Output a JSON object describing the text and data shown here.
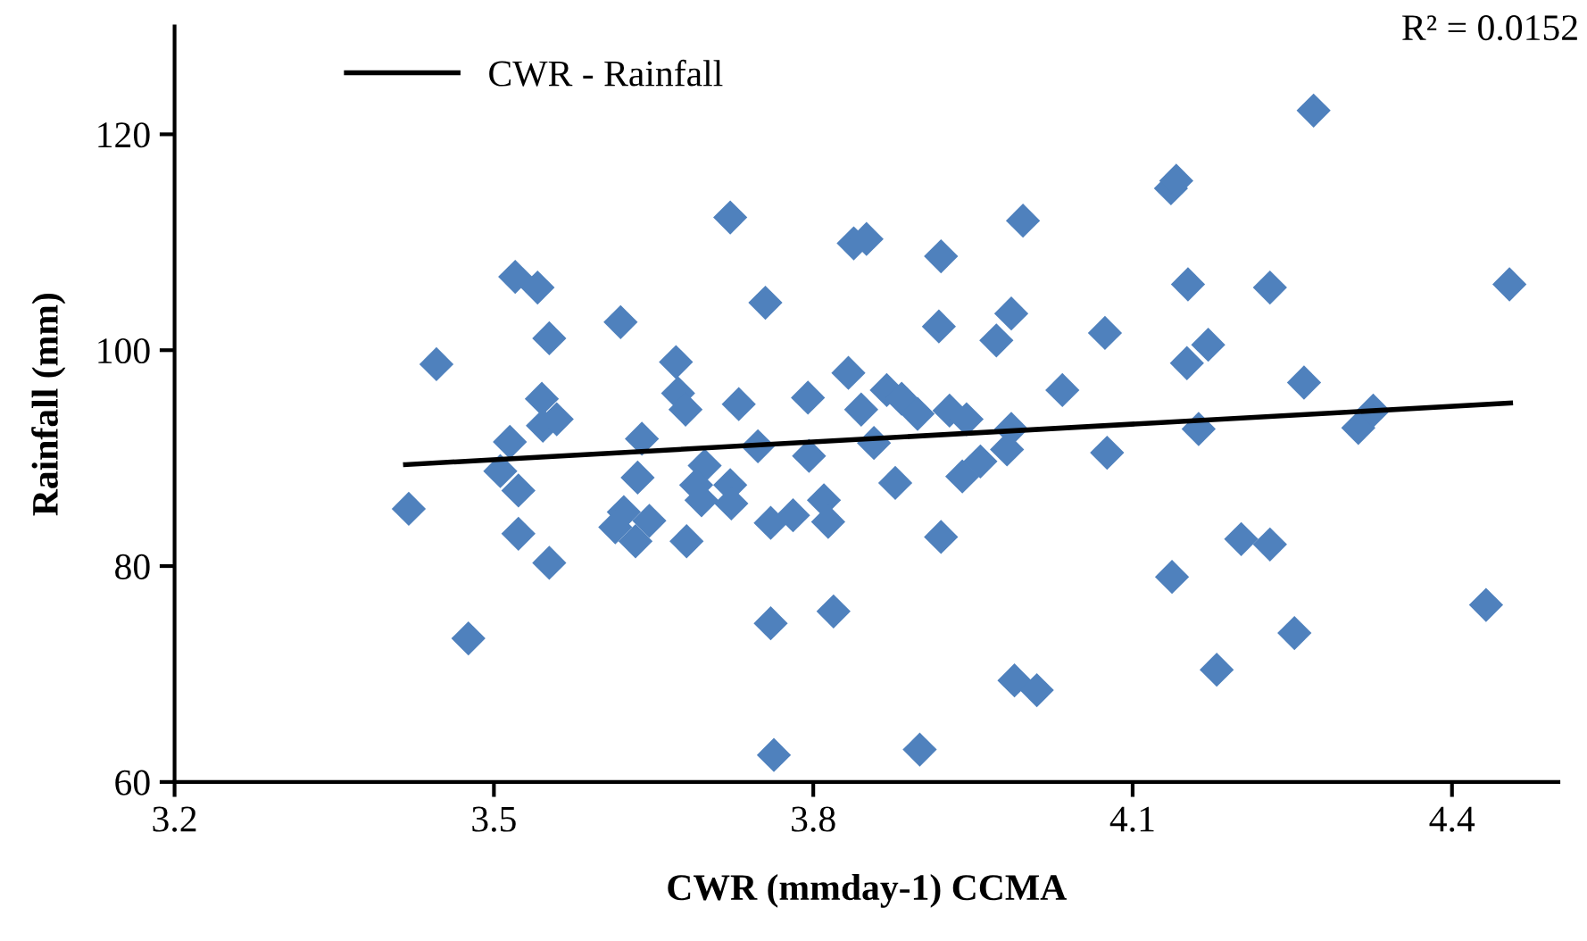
{
  "chart_data": {
    "type": "scatter",
    "xlabel": "CWR (mmday-1) CCMA",
    "ylabel": "Rainfall (mm)",
    "annotations": [
      "R² = 0.0152"
    ],
    "xlim": [
      3.2,
      4.5
    ],
    "xticks": [
      3.2,
      3.5,
      3.8,
      4.1,
      4.4
    ],
    "ylim": [
      60,
      130
    ],
    "yticks": [
      60,
      80,
      100,
      120
    ],
    "grid": false,
    "legend": "top left",
    "marker": "diamond",
    "series": [
      {
        "color": "#4f81bd",
        "x": [
          3.42,
          3.446,
          3.476,
          3.52,
          3.541,
          3.552,
          3.545,
          3.546,
          3.559,
          3.515,
          3.506,
          3.523,
          3.523,
          3.552,
          3.619,
          3.639,
          3.635,
          3.622,
          3.614,
          3.646,
          3.633,
          3.671,
          3.673,
          3.68,
          3.681,
          3.698,
          3.69,
          3.695,
          3.722,
          3.723,
          3.722,
          3.73,
          3.748,
          3.755,
          3.76,
          3.781,
          3.76,
          3.763,
          3.795,
          3.796,
          3.81,
          3.814,
          3.819,
          3.833,
          3.838,
          3.85,
          3.845,
          3.857,
          3.877,
          3.869,
          3.883,
          3.898,
          3.9,
          3.92,
          3.918,
          3.92,
          3.928,
          3.944,
          3.986,
          3.982,
          3.94,
          3.957,
          3.972,
          3.986,
          3.997,
          3.989,
          4.01,
          4.034,
          4.074,
          4.076,
          4.136,
          4.141,
          4.152,
          4.151,
          4.171,
          4.162,
          4.137,
          4.179,
          4.202,
          4.229,
          4.229,
          4.252,
          4.261,
          4.27,
          4.312,
          4.326,
          4.432,
          4.454
        ],
        "values": [
          85.3,
          98.7,
          73.3,
          106.8,
          105.8,
          101.1,
          95.5,
          93.0,
          93.6,
          91.5,
          88.8,
          87.0,
          83.0,
          80.3,
          102.6,
          91.8,
          88.2,
          85.0,
          83.6,
          84.2,
          82.3,
          98.9,
          96.0,
          94.5,
          82.3,
          89.3,
          87.5,
          86.1,
          87.5,
          85.8,
          112.3,
          95.0,
          91.1,
          104.4,
          84.0,
          84.7,
          74.7,
          62.5,
          95.6,
          90.2,
          86.1,
          84.1,
          75.8,
          97.9,
          109.9,
          110.3,
          94.5,
          91.4,
          87.7,
          96.3,
          95.5,
          94.1,
          63.0,
          108.7,
          102.2,
          82.7,
          94.4,
          93.6,
          92.7,
          90.8,
          88.3,
          89.7,
          100.9,
          103.4,
          112.0,
          69.4,
          68.5,
          96.3,
          101.6,
          90.5,
          115.0,
          115.7,
          106.1,
          98.8,
          100.5,
          92.7,
          79.0,
          70.4,
          82.5,
          82.0,
          105.8,
          73.8,
          97.0,
          122.2,
          92.8,
          94.4,
          76.4,
          106.1
        ]
      },
      {
        "type": "line",
        "name": "CWR - Rainfall",
        "color": "#000000",
        "marker": "none",
        "line_style": "solid",
        "x": [
          3.417,
          4.455
        ],
        "values": [
          89.4,
          95.1
        ]
      }
    ]
  }
}
